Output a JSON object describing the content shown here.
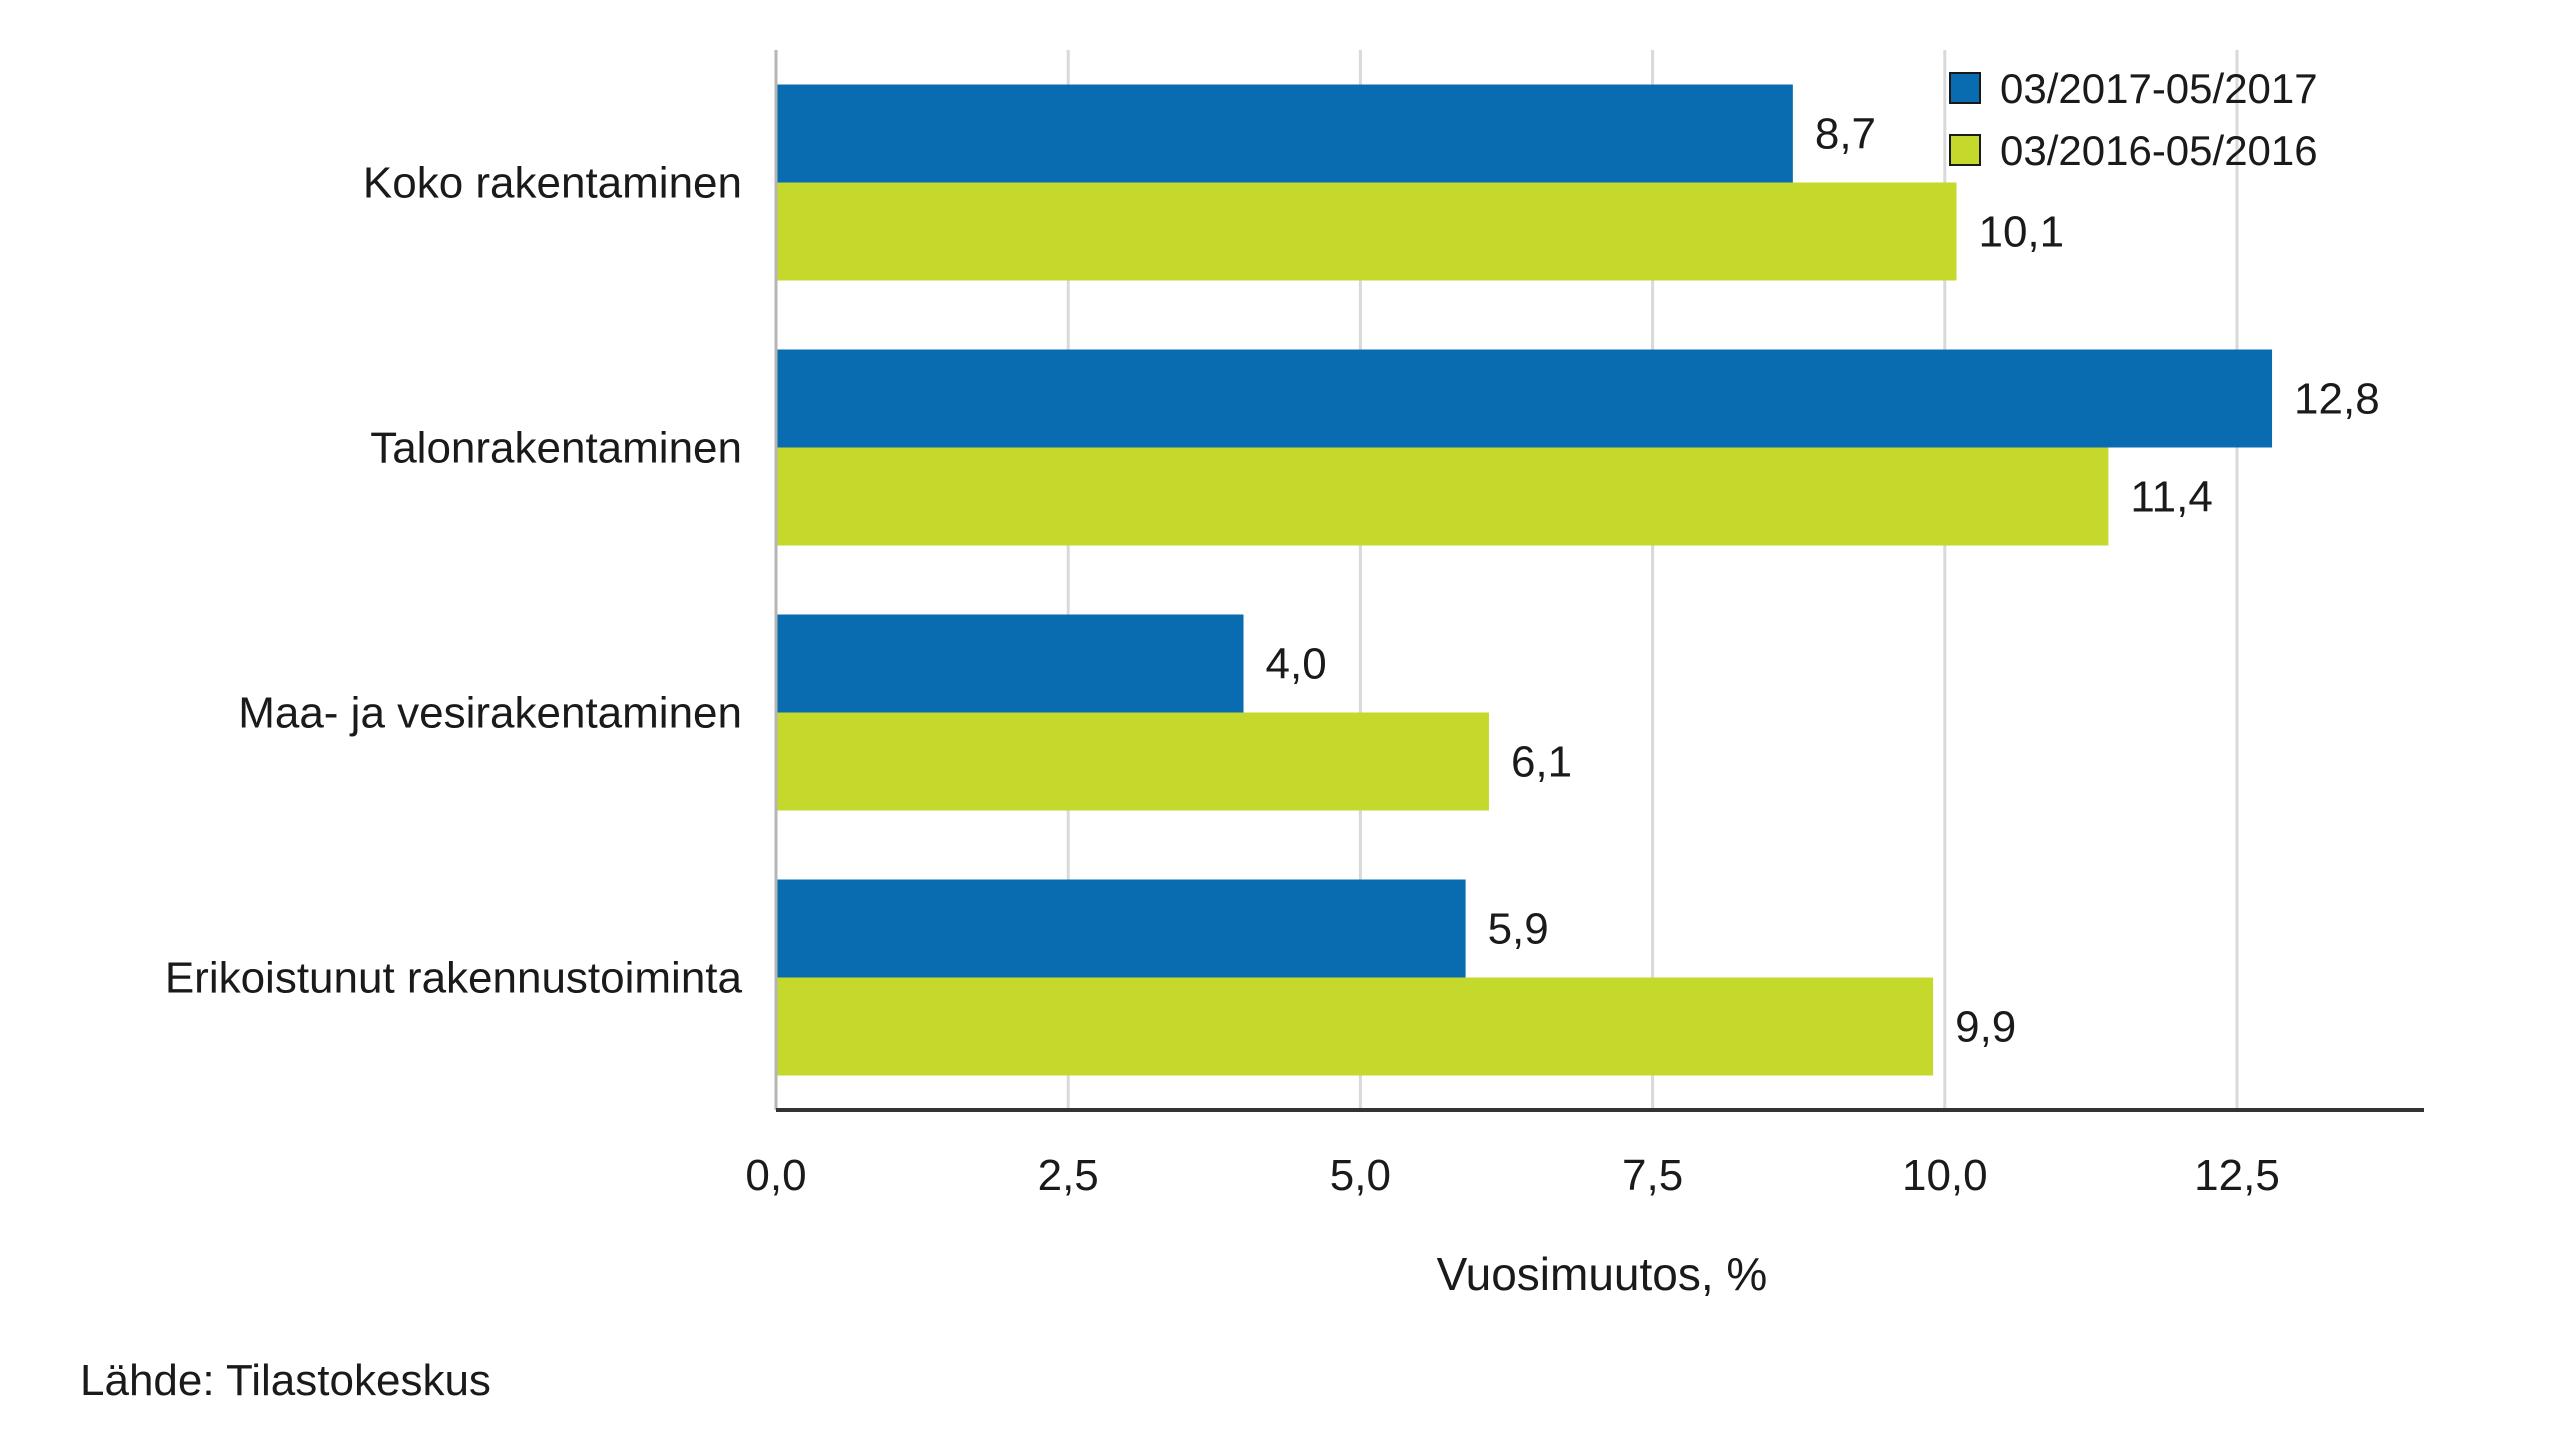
{
  "chart_data": {
    "type": "bar",
    "orientation": "horizontal",
    "categories": [
      "Koko rakentaminen",
      "Talonrakentaminen",
      "Maa- ja vesirakentaminen",
      "Erikoistunut rakennustoiminta"
    ],
    "series": [
      {
        "name": "03/2017-05/2017",
        "color": "#0a6cb0",
        "values": [
          8.7,
          12.8,
          4.0,
          5.9
        ],
        "labels": [
          "8,7",
          "12,8",
          "4,0",
          "5,9"
        ]
      },
      {
        "name": "03/2016-05/2016",
        "color": "#c5d92d",
        "values": [
          10.1,
          11.4,
          6.1,
          9.9
        ],
        "labels": [
          "10,1",
          "11,4",
          "6,1",
          "9,9"
        ]
      }
    ],
    "x_ticks": [
      0,
      2.5,
      5,
      7.5,
      10,
      12.5
    ],
    "x_tick_labels": [
      "0,0",
      "2,5",
      "5,0",
      "7,5",
      "10,0",
      "12,5"
    ],
    "xlim": [
      0,
      14.1
    ],
    "xlabel": "Vuosimuutos, %",
    "ylabel": "",
    "grid": "vertical",
    "legend": "top-right",
    "source": "Lähde: Tilastokeskus"
  }
}
